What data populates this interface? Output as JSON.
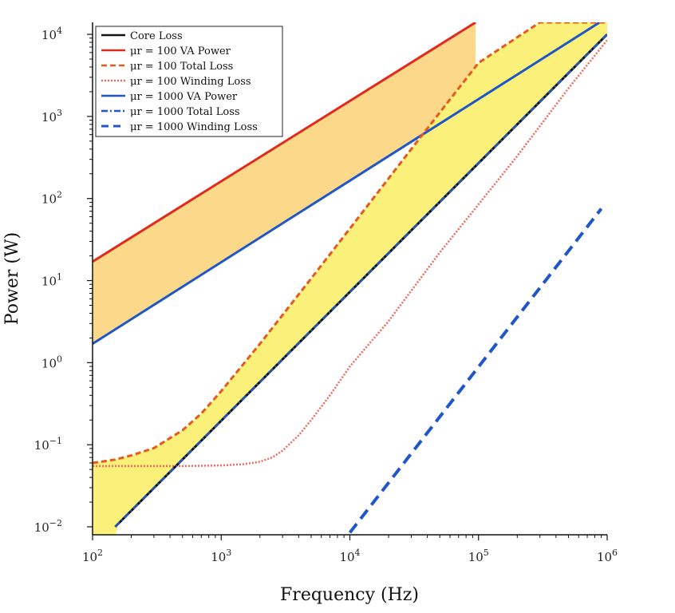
{
  "chart_data": {
    "type": "line",
    "xscale": "log",
    "yscale": "log",
    "xlim": [
      100,
      1000000
    ],
    "ylim": [
      0.008,
      14000
    ],
    "xlabel": "Frequency (Hz)",
    "ylabel": "Power (W)",
    "xticks": [
      {
        "value": 100,
        "base": "10",
        "exp": "2"
      },
      {
        "value": 1000,
        "base": "10",
        "exp": "3"
      },
      {
        "value": 10000,
        "base": "10",
        "exp": "4"
      },
      {
        "value": 100000,
        "base": "10",
        "exp": "5"
      },
      {
        "value": 1000000,
        "base": "10",
        "exp": "6"
      }
    ],
    "yticks": [
      {
        "value": 0.01,
        "base": "10",
        "exp": "−2"
      },
      {
        "value": 0.1,
        "base": "10",
        "exp": "−1"
      },
      {
        "value": 1,
        "base": "10",
        "exp": "0"
      },
      {
        "value": 10,
        "base": "10",
        "exp": "1"
      },
      {
        "value": 100,
        "base": "10",
        "exp": "2"
      },
      {
        "value": 1000,
        "base": "10",
        "exp": "3"
      },
      {
        "value": 10000,
        "base": "10",
        "exp": "4"
      }
    ],
    "shaded_regions": [
      {
        "name": "region-va-power-band",
        "color": "#fcd98a",
        "upper": "mu100-va-power",
        "lower": "mu1000-va-power"
      },
      {
        "name": "region-loss-band",
        "color": "#faf07a",
        "upper": "mu100-total-loss",
        "lower": "core-loss"
      }
    ],
    "series": [
      {
        "id": "core-loss",
        "name": "Core Loss",
        "color": "#111111",
        "dash": "solid",
        "in_legend": true,
        "x": [
          150,
          1000000
        ],
        "y": [
          0.01,
          10000
        ]
      },
      {
        "id": "mu100-va-power",
        "name": "μr = 100 VA Power",
        "color": "#e02a1c",
        "dash": "solid",
        "in_legend": true,
        "x": [
          100,
          95000
        ],
        "y": [
          17,
          14000
        ]
      },
      {
        "id": "mu100-total-loss",
        "name": "μr = 100 Total Loss",
        "color": "#e55a1c",
        "dash": "dashed",
        "in_legend": true,
        "x": [
          100,
          150,
          200,
          300,
          500,
          700,
          1000,
          2000,
          5000,
          10000,
          30000,
          100000,
          300000,
          1000000
        ],
        "y": [
          0.06,
          0.066,
          0.074,
          0.091,
          0.15,
          0.24,
          0.45,
          1.7,
          10.6,
          43,
          400,
          4500,
          14000,
          14000
        ]
      },
      {
        "id": "mu100-winding-loss",
        "name": "μr = 100 Winding Loss",
        "color": "#ef6a5e",
        "dash": "dotted",
        "in_legend": true,
        "x": [
          100,
          500,
          1000,
          1500,
          2000,
          2500,
          3000,
          4000,
          5000,
          7000,
          10000,
          20000,
          50000,
          100000,
          200000,
          500000,
          1000000
        ],
        "y": [
          0.055,
          0.055,
          0.056,
          0.058,
          0.062,
          0.07,
          0.085,
          0.13,
          0.2,
          0.4,
          0.9,
          3.2,
          22,
          85,
          330,
          2200,
          8500
        ]
      },
      {
        "id": "mu1000-va-power",
        "name": "μr = 1000 VA Power",
        "color": "#1f56c9",
        "dash": "solid",
        "in_legend": true,
        "x": [
          100,
          1000000
        ],
        "y": [
          1.7,
          16000
        ]
      },
      {
        "id": "mu1000-total-loss",
        "name": "μr = 1000 Total Loss",
        "color": "#1f56c9",
        "dash": "dashdot",
        "in_legend": true,
        "x": [
          150,
          1000000
        ],
        "y": [
          0.01,
          10000
        ]
      },
      {
        "id": "mu1000-winding-loss",
        "name": "μr = 1000 Winding Loss",
        "color": "#1f56c9",
        "dash": "longdash",
        "in_legend": true,
        "x": [
          10000,
          900000
        ],
        "y": [
          0.0085,
          75
        ]
      }
    ],
    "legend": {
      "position": "top-left"
    }
  }
}
